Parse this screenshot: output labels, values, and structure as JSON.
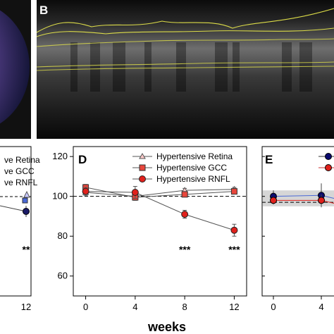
{
  "panels": {
    "B": {
      "letter": "B"
    },
    "C": {
      "legend": [
        "ve Retina",
        "ve GCC",
        "ve RNFL"
      ],
      "xticks": [
        "12"
      ],
      "annotations": [
        "**"
      ]
    },
    "E": {
      "letter": "E"
    }
  },
  "xlabel": "weeks",
  "colors": {
    "retina": "#ffc9c9",
    "gcc": "#e8463c",
    "rnfl": "#e0211c",
    "control_retina": "#c9c9ff",
    "control_gcc": "#4a68d6",
    "control_rnfl": "#0a0a6e",
    "oct_layer_line": "#e6e64a"
  },
  "chart_data": [
    {
      "panel": "D",
      "type": "line",
      "title": "D",
      "xlabel": "weeks",
      "ylabel": "",
      "x": [
        0,
        4,
        8,
        12
      ],
      "xlim": [
        -1,
        13
      ],
      "ylim": [
        50,
        125
      ],
      "yticks": [
        60,
        80,
        100,
        120
      ],
      "reference_line": 100,
      "legend_position": "top-right",
      "series": [
        {
          "name": "Hypertensive Retina",
          "marker": "triangle",
          "values": [
            102,
            100,
            103,
            103.5
          ],
          "errors": [
            1,
            1,
            1,
            1
          ]
        },
        {
          "name": "Hypertensive GCC",
          "marker": "square",
          "values": [
            104.5,
            99.5,
            101,
            102.5
          ],
          "errors": [
            1.5,
            1.5,
            1,
            1
          ]
        },
        {
          "name": "Hypertensive RNFL",
          "marker": "circle",
          "values": [
            102.5,
            102,
            91,
            83
          ],
          "errors": [
            2,
            3,
            2,
            3
          ]
        }
      ],
      "annotations": [
        {
          "x": 8,
          "text": "***"
        },
        {
          "x": 12,
          "text": "***"
        }
      ]
    },
    {
      "panel": "E",
      "type": "line",
      "x": [
        0,
        4
      ],
      "xticks": [
        "0",
        "4"
      ],
      "series": [
        {
          "marker": "circle",
          "values": [
            100,
            100.5
          ],
          "errors": [
            3,
            6
          ]
        },
        {
          "marker": "circle",
          "values": [
            98,
            98
          ],
          "errors": [
            2,
            3
          ]
        }
      ],
      "reference_band": [
        95,
        103
      ],
      "reference_line": 97
    }
  ]
}
